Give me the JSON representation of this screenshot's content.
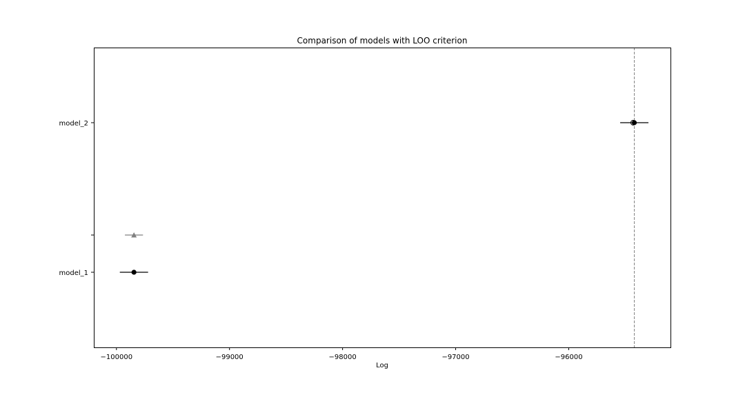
{
  "chart_data": {
    "type": "scatter",
    "title": "Comparison of models with LOO criterion",
    "xlabel": "Log",
    "ylabel": "",
    "xlim": [
      -100200,
      -95100
    ],
    "x_ticks": [
      -100000,
      -99000,
      -98000,
      -97000,
      -96000
    ],
    "x_tick_labels": [
      "−100000",
      "−99000",
      "−98000",
      "−97000",
      "−96000"
    ],
    "categories": [
      "model_2",
      "model_1"
    ],
    "points": [
      {
        "model": "model_2",
        "elpd": -95420,
        "se": 125,
        "marker": "filled-circle",
        "color": "#000000",
        "in_sample": -95430
      },
      {
        "model": "model_1",
        "elpd": -99845,
        "se": 125,
        "marker": "filled-circle",
        "color": "#000000"
      }
    ],
    "difference": {
      "value": -99845,
      "se": 80,
      "marker": "triangle",
      "color": "#808080"
    },
    "reference_line": {
      "x": -95420,
      "style": "dashed",
      "color": "#808080"
    },
    "grid": false,
    "legend": "none"
  }
}
